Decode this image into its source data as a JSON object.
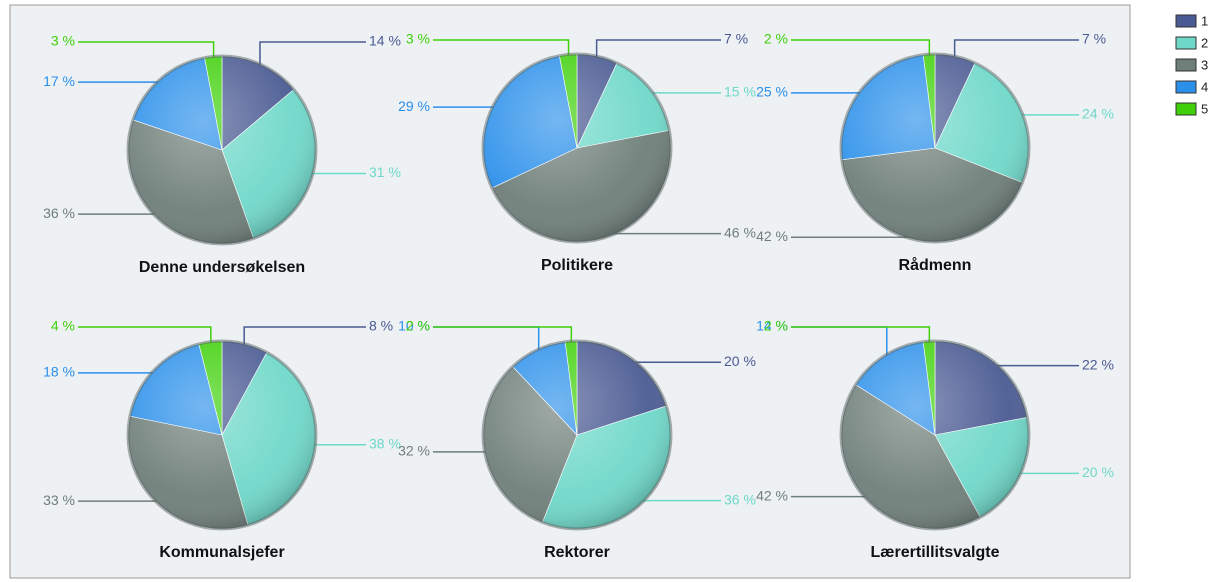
{
  "legend": {
    "labels": [
      "1",
      "2",
      "3",
      "4",
      "5"
    ],
    "colors": [
      "#4a5a92",
      "#6ed8c9",
      "#6e7e79",
      "#2b90ea",
      "#3fd00a"
    ]
  },
  "chart_data": [
    {
      "type": "pie",
      "title": "Denne undersøkelsen",
      "values": [
        14,
        31,
        36,
        17,
        3
      ],
      "value_labels": [
        "14 %",
        "31 %",
        "36 %",
        "17 %",
        "3 %"
      ]
    },
    {
      "type": "pie",
      "title": "Politikere",
      "values": [
        7,
        15,
        46,
        29,
        3
      ],
      "value_labels": [
        "7 %",
        "15 %",
        "46 %",
        "29 %",
        "3 %"
      ]
    },
    {
      "type": "pie",
      "title": "Rådmenn",
      "values": [
        7,
        24,
        42,
        25,
        2
      ],
      "value_labels": [
        "7 %",
        "24 %",
        "42 %",
        "25 %",
        "2 %"
      ]
    },
    {
      "type": "pie",
      "title": "Kommunalsjefer",
      "values": [
        8,
        38,
        33,
        18,
        4
      ],
      "value_labels": [
        "8 %",
        "38 %",
        "33 %",
        "18 %",
        "4 %"
      ]
    },
    {
      "type": "pie",
      "title": "Rektorer",
      "values": [
        20,
        36,
        32,
        10,
        2
      ],
      "value_labels": [
        "20 %",
        "36 %",
        "32 %",
        "10 %",
        "2 %"
      ]
    },
    {
      "type": "pie",
      "title": "Lærertillitsvalgte",
      "values": [
        22,
        20,
        42,
        14,
        2
      ],
      "value_labels": [
        "22 %",
        "20 %",
        "42 %",
        "14 %",
        "2 %"
      ]
    }
  ]
}
